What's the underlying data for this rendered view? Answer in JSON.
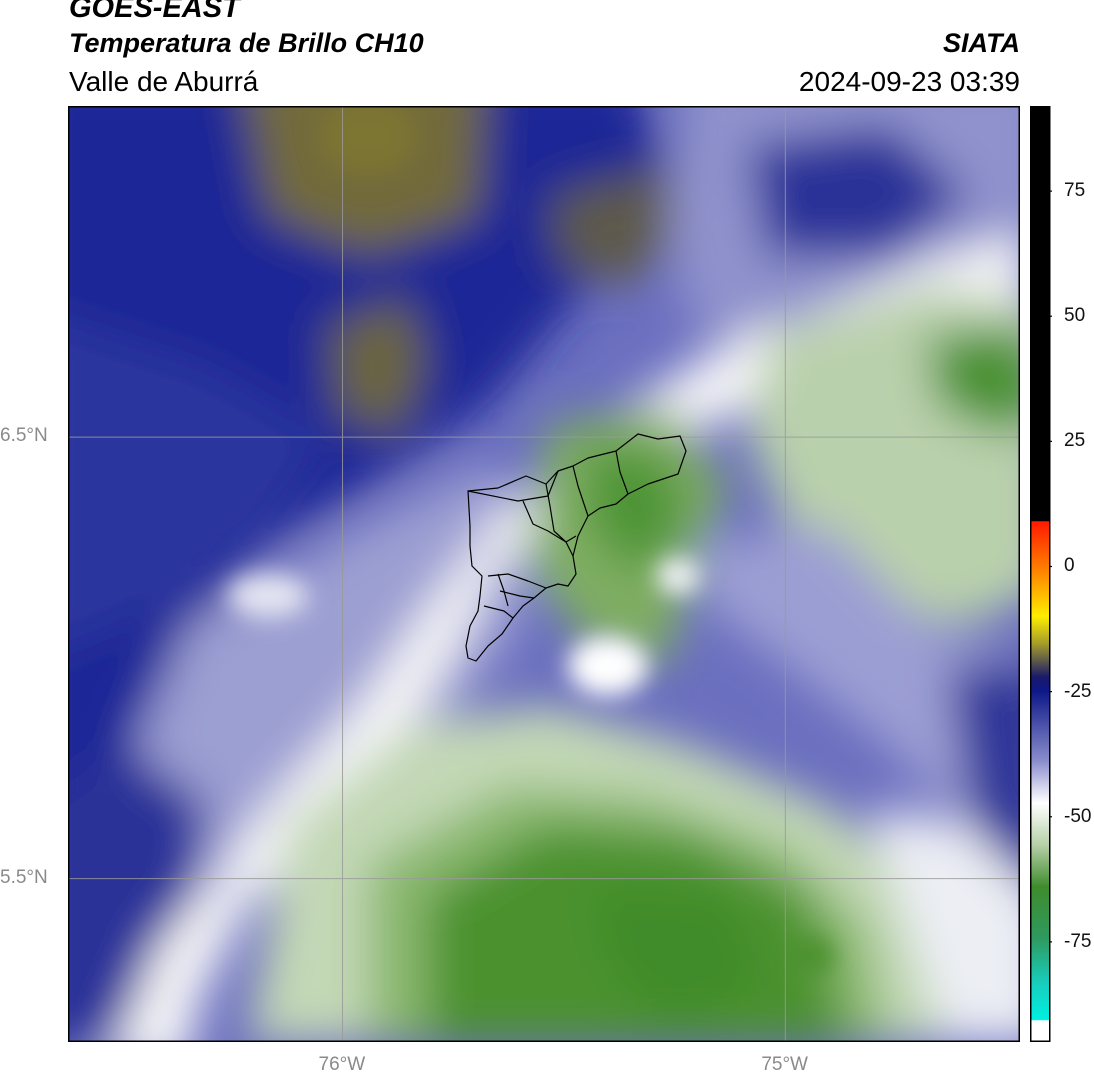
{
  "header": {
    "satellite": "GOES-EAST",
    "product": "Temperatura de Brillo CH10",
    "region": "Valle de Aburrá",
    "agency": "SIATA",
    "timestamp": "2024-09-23 03:39"
  },
  "map": {
    "lat_labels": [
      {
        "text": "6.5°N",
        "value": 6.5
      },
      {
        "text": "5.5°N",
        "value": 5.5
      }
    ],
    "lon_labels": [
      {
        "text": "76°W",
        "value": -76.0
      },
      {
        "text": "75°W",
        "value": -75.0
      }
    ],
    "extent": {
      "lon_min": -76.62,
      "lon_max": -74.47,
      "lat_min": 5.13,
      "lat_max": 7.25
    },
    "gridlines": true
  },
  "colorbar": {
    "ticks": [
      "75",
      "50",
      "25",
      "0",
      "-25",
      "-50",
      "-75"
    ],
    "tick_values": [
      75,
      50,
      25,
      0,
      -25,
      -50,
      -75
    ],
    "range": [
      -95,
      92
    ]
  },
  "colors": {
    "green_dark": "#3d8a2a",
    "green_light": "#c9dcbf",
    "white": "#ffffff",
    "lavender": "#a7a9d6",
    "blue_dark": "#0f1a82",
    "olive": "#7a7338",
    "black": "#000000",
    "red": "#ff2200",
    "yellow": "#ffee00",
    "cyan": "#00e6d6"
  }
}
